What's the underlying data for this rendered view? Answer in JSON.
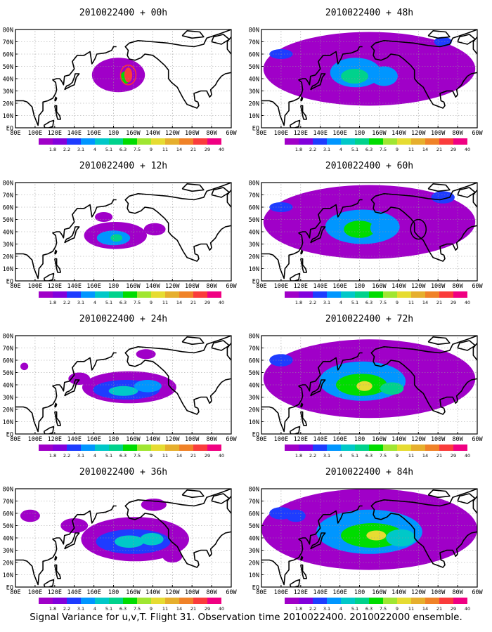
{
  "figure": {
    "caption": "Signal Variance for u,v,T. Flight 31. Observation time 2010022400. 2010022000 ensemble."
  },
  "axes": {
    "lat_labels": [
      "EQ",
      "10N",
      "20N",
      "30N",
      "40N",
      "50N",
      "60N",
      "70N",
      "80N"
    ],
    "lon_labels": [
      "80E",
      "100E",
      "120E",
      "140E",
      "160E",
      "180",
      "160W",
      "140W",
      "120W",
      "100W",
      "80W",
      "60W"
    ],
    "lon_range": [
      80,
      300
    ],
    "lat_range": [
      0,
      80
    ],
    "grid": "dotted"
  },
  "colorbar": {
    "labels": [
      "1.8",
      "2.2",
      "3.1",
      "4",
      "5.1",
      "6.3",
      "7.5",
      "9",
      "11",
      "14",
      "21",
      "29",
      "40"
    ],
    "colors": [
      "#a000c8",
      "#8200dc",
      "#1e3cff",
      "#0096ff",
      "#00c8c8",
      "#00d28c",
      "#00dc00",
      "#a0e632",
      "#e6dc32",
      "#e6af2d",
      "#f08228",
      "#fa3c3c",
      "#f00082"
    ]
  },
  "panels": [
    {
      "title": "2010022400 + 00h",
      "lead": 0
    },
    {
      "title": "2010022400 + 48h",
      "lead": 48
    },
    {
      "title": "2010022400 + 12h",
      "lead": 12
    },
    {
      "title": "2010022400 + 60h",
      "lead": 60
    },
    {
      "title": "2010022400 + 24h",
      "lead": 24
    },
    {
      "title": "2010022400 + 72h",
      "lead": 72
    },
    {
      "title": "2010022400 + 36h",
      "lead": 36
    },
    {
      "title": "2010022400 + 84h",
      "lead": 84
    }
  ]
}
